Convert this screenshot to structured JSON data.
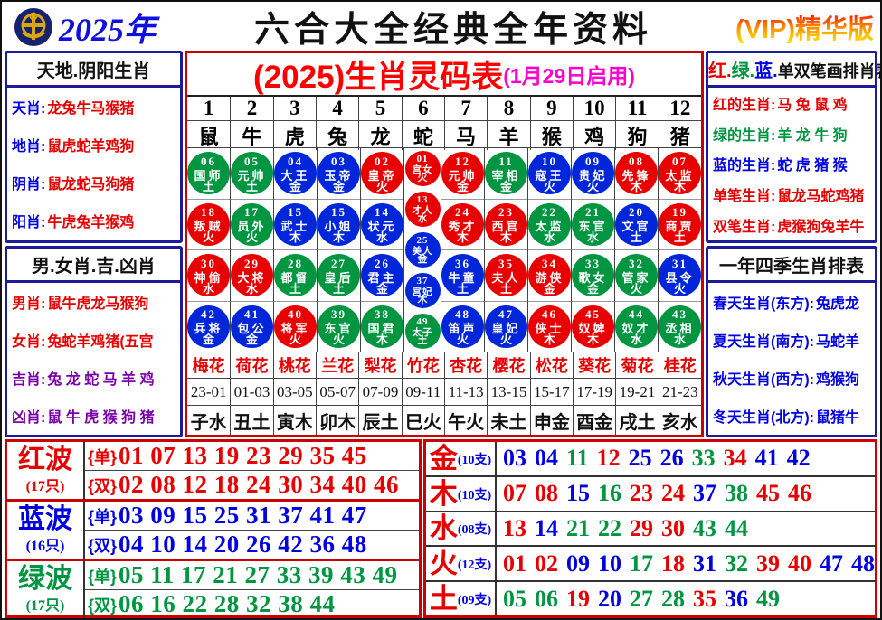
{
  "colors": {
    "red": "#e60000",
    "blue": "#0000e0",
    "green": "#009540",
    "purple": "#7a00a8",
    "magenta": "#ff00cc",
    "navy": "#1c1c99",
    "table_border": "#cc0000",
    "gold": "#d8a713"
  },
  "header": {
    "year": "2025年",
    "title": "六合大全经典全年资料",
    "vip": "(VIP)精华版",
    "logo": "liuhe-emblem"
  },
  "left_panel": {
    "box1": {
      "title": "天地.阴阳生肖",
      "rows": [
        {
          "label": "天肖",
          "value": "龙兔牛马猴猪"
        },
        {
          "label": "地肖",
          "value": "鼠虎蛇羊鸡狗"
        },
        {
          "label": "阴肖",
          "value": "鼠龙蛇马狗猪"
        },
        {
          "label": "阳肖",
          "value": "牛虎兔羊猴鸡"
        }
      ]
    },
    "box2": {
      "title": "男.女肖.吉.凶肖",
      "rows": [
        {
          "label": "男肖",
          "value": "鼠牛虎龙马猴狗",
          "color": "red"
        },
        {
          "label": "女肖",
          "value": "兔蛇羊鸡猪(五宫",
          "color": "red"
        },
        {
          "label": "吉肖",
          "value": "兔 龙 蛇 马 羊 鸡",
          "color": "purple"
        },
        {
          "label": "凶肖",
          "value": "鼠 牛 虎 猴 狗 猪",
          "color": "purple"
        }
      ]
    }
  },
  "main_table": {
    "title": "(2025)生肖灵码表",
    "subtitle": "(1月29日启用)",
    "col_numbers": [
      "1",
      "2",
      "3",
      "4",
      "5",
      "6",
      "7",
      "8",
      "9",
      "10",
      "11",
      "12"
    ],
    "animals": [
      "鼠",
      "牛",
      "虎",
      "兔",
      "龙",
      "蛇",
      "马",
      "羊",
      "猴",
      "鸡",
      "狗",
      "猪"
    ],
    "columns": [
      {
        "animal": "鼠",
        "balls": [
          {
            "num": "06",
            "title": "国师",
            "element": "土",
            "color": "green"
          },
          {
            "num": "18",
            "title": "叛贼",
            "element": "火",
            "color": "red"
          },
          {
            "num": "30",
            "title": "神偷",
            "element": "水",
            "color": "red"
          },
          {
            "num": "42",
            "title": "兵将",
            "element": "金",
            "color": "blue"
          }
        ]
      },
      {
        "animal": "牛",
        "balls": [
          {
            "num": "05",
            "title": "元帅",
            "element": "土",
            "color": "green"
          },
          {
            "num": "17",
            "title": "员外",
            "element": "火",
            "color": "green"
          },
          {
            "num": "29",
            "title": "大将",
            "element": "水",
            "color": "red"
          },
          {
            "num": "41",
            "title": "包公",
            "element": "金",
            "color": "blue"
          }
        ]
      },
      {
        "animal": "虎",
        "balls": [
          {
            "num": "04",
            "title": "大王",
            "element": "金",
            "color": "blue"
          },
          {
            "num": "15",
            "title": "武士",
            "element": "木",
            "color": "blue"
          },
          {
            "num": "28",
            "title": "都督",
            "element": "土",
            "color": "green"
          },
          {
            "num": "40",
            "title": "将军",
            "element": "火",
            "color": "red"
          }
        ]
      },
      {
        "animal": "兔",
        "balls": [
          {
            "num": "03",
            "title": "玉帝",
            "element": "金",
            "color": "blue"
          },
          {
            "num": "15",
            "title": "小姐",
            "element": "木",
            "color": "blue"
          },
          {
            "num": "27",
            "title": "皇后",
            "element": "土",
            "color": "green"
          },
          {
            "num": "39",
            "title": "东官",
            "element": "火",
            "color": "green"
          }
        ]
      },
      {
        "animal": "龙",
        "balls": [
          {
            "num": "02",
            "title": "皇帝",
            "element": "火",
            "color": "red"
          },
          {
            "num": "14",
            "title": "状元",
            "element": "水",
            "color": "blue"
          },
          {
            "num": "26",
            "title": "君主",
            "element": "金",
            "color": "blue"
          },
          {
            "num": "38",
            "title": "国君",
            "element": "木",
            "color": "green"
          }
        ]
      },
      {
        "animal": "蛇",
        "special": true,
        "balls": [
          {
            "num": "01",
            "title": "宫女",
            "element": "火",
            "color": "red"
          },
          {
            "num": "13",
            "title": "才人",
            "element": "水",
            "color": "red"
          },
          {
            "num": "25",
            "title": "美人",
            "element": "金",
            "color": "blue"
          },
          {
            "num": "37",
            "title": "宫妃",
            "element": "木",
            "color": "blue"
          },
          {
            "num": "49",
            "title": "太子",
            "element": "土",
            "color": "green"
          }
        ]
      },
      {
        "animal": "马",
        "balls": [
          {
            "num": "12",
            "title": "元帅",
            "element": "金",
            "color": "red"
          },
          {
            "num": "24",
            "title": "秀才",
            "element": "木",
            "color": "red"
          },
          {
            "num": "36",
            "title": "牛童",
            "element": "土",
            "color": "blue"
          },
          {
            "num": "48",
            "title": "笛声",
            "element": "火",
            "color": "blue"
          }
        ]
      },
      {
        "animal": "羊",
        "balls": [
          {
            "num": "11",
            "title": "宰相",
            "element": "金",
            "color": "green"
          },
          {
            "num": "23",
            "title": "西官",
            "element": "木",
            "color": "red"
          },
          {
            "num": "35",
            "title": "夫人",
            "element": "土",
            "color": "red"
          },
          {
            "num": "47",
            "title": "皇妃",
            "element": "火",
            "color": "blue"
          }
        ]
      },
      {
        "animal": "猴",
        "balls": [
          {
            "num": "10",
            "title": "寇王",
            "element": "火",
            "color": "blue"
          },
          {
            "num": "22",
            "title": "太监",
            "element": "水",
            "color": "green"
          },
          {
            "num": "34",
            "title": "游侠",
            "element": "金",
            "color": "red"
          },
          {
            "num": "46",
            "title": "侠士",
            "element": "木",
            "color": "red"
          }
        ]
      },
      {
        "animal": "鸡",
        "balls": [
          {
            "num": "09",
            "title": "贵妃",
            "element": "火",
            "color": "blue"
          },
          {
            "num": "21",
            "title": "东官",
            "element": "水",
            "color": "green"
          },
          {
            "num": "33",
            "title": "歌女",
            "element": "金",
            "color": "green"
          },
          {
            "num": "45",
            "title": "奴婢",
            "element": "木",
            "color": "red"
          }
        ]
      },
      {
        "animal": "狗",
        "balls": [
          {
            "num": "08",
            "title": "先锋",
            "element": "木",
            "color": "red"
          },
          {
            "num": "20",
            "title": "文官",
            "element": "土",
            "color": "blue"
          },
          {
            "num": "32",
            "title": "管家",
            "element": "火",
            "color": "green"
          },
          {
            "num": "44",
            "title": "奴才",
            "element": "水",
            "color": "green"
          }
        ]
      },
      {
        "animal": "猪",
        "balls": [
          {
            "num": "07",
            "title": "太监",
            "element": "木",
            "color": "red"
          },
          {
            "num": "19",
            "title": "商贾",
            "element": "土",
            "color": "red"
          },
          {
            "num": "31",
            "title": "县令",
            "element": "火",
            "color": "blue"
          },
          {
            "num": "43",
            "title": "丞相",
            "element": "水",
            "color": "green"
          }
        ]
      }
    ],
    "flowers": [
      "梅花",
      "荷花",
      "桃花",
      "兰花",
      "梨花",
      "竹花",
      "杏花",
      "樱花",
      "松花",
      "葵花",
      "菊花",
      "桂花"
    ],
    "hours": [
      "23-01",
      "01-03",
      "03-05",
      "05-07",
      "07-09",
      "09-11",
      "11-13",
      "13-15",
      "15-17",
      "17-19",
      "19-21",
      "21-23"
    ],
    "branches": [
      "子水",
      "丑土",
      "寅木",
      "卯木",
      "辰土",
      "巳火",
      "午火",
      "未土",
      "申金",
      "酉金",
      "戌土",
      "亥水"
    ]
  },
  "right_panel": {
    "box1": {
      "title_parts": [
        {
          "t": "红.",
          "c": "red"
        },
        {
          "t": "绿.",
          "c": "green"
        },
        {
          "t": "蓝.",
          "c": "blue"
        },
        {
          "t": "单双笔画排肖表",
          "c": "black"
        }
      ],
      "rows": [
        {
          "label": "红的生肖",
          "value": "马 兔 鼠 鸡",
          "color": "red"
        },
        {
          "label": "绿的生肖",
          "value": "羊 龙 牛 狗",
          "color": "green"
        },
        {
          "label": "蓝的生肖",
          "value": "蛇 虎 猪 猴",
          "color": "blue"
        },
        {
          "label": "单笔生肖",
          "value": "鼠龙马蛇鸡猪",
          "color": "red"
        },
        {
          "label": "双笔生肖",
          "value": "虎猴狗兔羊牛",
          "color": "red"
        }
      ]
    },
    "box2": {
      "title": "一年四季生肖排表",
      "rows": [
        {
          "label": "春天生肖(东方)",
          "value": "兔虎龙"
        },
        {
          "label": "夏天生肖(南方)",
          "value": "马蛇羊"
        },
        {
          "label": "秋天生肖(西方)",
          "value": "鸡猴狗"
        },
        {
          "label": "冬天生肖(北方)",
          "value": "鼠猪牛"
        }
      ]
    }
  },
  "waves": [
    {
      "name": "红波",
      "count": "(17只)",
      "color": "red",
      "lines": [
        {
          "tag": "{单}",
          "nums": "01 07 13 19 23 29 35 45"
        },
        {
          "tag": "{双}",
          "nums": "02 08 12 18 24 30 34 40 46"
        }
      ]
    },
    {
      "name": "蓝波",
      "count": "(16只)",
      "color": "blue",
      "lines": [
        {
          "tag": "{单}",
          "nums": "03 09 15 25 31 37 41 47"
        },
        {
          "tag": "{双}",
          "nums": "04 10 14 20 26 42 36 48"
        }
      ]
    },
    {
      "name": "绿波",
      "count": "(17只)",
      "color": "green",
      "lines": [
        {
          "tag": "{单}",
          "nums": "05 11 17 21 27 33 39 43 49"
        },
        {
          "tag": "{双}",
          "nums": "06 16 22 28 32 38 44"
        }
      ]
    }
  ],
  "five_elements": [
    {
      "name": "金",
      "count": "(10支)",
      "numbers": [
        [
          "03",
          "blue"
        ],
        [
          "04",
          "blue"
        ],
        [
          "11",
          "green"
        ],
        [
          "12",
          "red"
        ],
        [
          "25",
          "blue"
        ],
        [
          "26",
          "blue"
        ],
        [
          "33",
          "green"
        ],
        [
          "34",
          "red"
        ],
        [
          "41",
          "blue"
        ],
        [
          "42",
          "blue"
        ]
      ]
    },
    {
      "name": "木",
      "count": "(10支)",
      "numbers": [
        [
          "07",
          "red"
        ],
        [
          "08",
          "red"
        ],
        [
          "15",
          "blue"
        ],
        [
          "16",
          "green"
        ],
        [
          "23",
          "red"
        ],
        [
          "24",
          "red"
        ],
        [
          "37",
          "blue"
        ],
        [
          "38",
          "green"
        ],
        [
          "45",
          "red"
        ],
        [
          "46",
          "red"
        ]
      ]
    },
    {
      "name": "水",
      "count": "(08支)",
      "numbers": [
        [
          "13",
          "red"
        ],
        [
          "14",
          "blue"
        ],
        [
          "21",
          "green"
        ],
        [
          "22",
          "green"
        ],
        [
          "29",
          "red"
        ],
        [
          "30",
          "red"
        ],
        [
          "43",
          "green"
        ],
        [
          "44",
          "green"
        ]
      ]
    },
    {
      "name": "火",
      "count": "(12支)",
      "numbers": [
        [
          "01",
          "red"
        ],
        [
          "02",
          "red"
        ],
        [
          "09",
          "blue"
        ],
        [
          "10",
          "blue"
        ],
        [
          "17",
          "green"
        ],
        [
          "18",
          "red"
        ],
        [
          "31",
          "blue"
        ],
        [
          "32",
          "green"
        ],
        [
          "39",
          "red"
        ],
        [
          "40",
          "red"
        ],
        [
          "47",
          "blue"
        ],
        [
          "48",
          "blue"
        ]
      ]
    },
    {
      "name": "土",
      "count": "(09支)",
      "numbers": [
        [
          "05",
          "green"
        ],
        [
          "06",
          "green"
        ],
        [
          "19",
          "red"
        ],
        [
          "20",
          "blue"
        ],
        [
          "27",
          "green"
        ],
        [
          "28",
          "green"
        ],
        [
          "35",
          "red"
        ],
        [
          "36",
          "blue"
        ],
        [
          "49",
          "green"
        ]
      ]
    }
  ]
}
